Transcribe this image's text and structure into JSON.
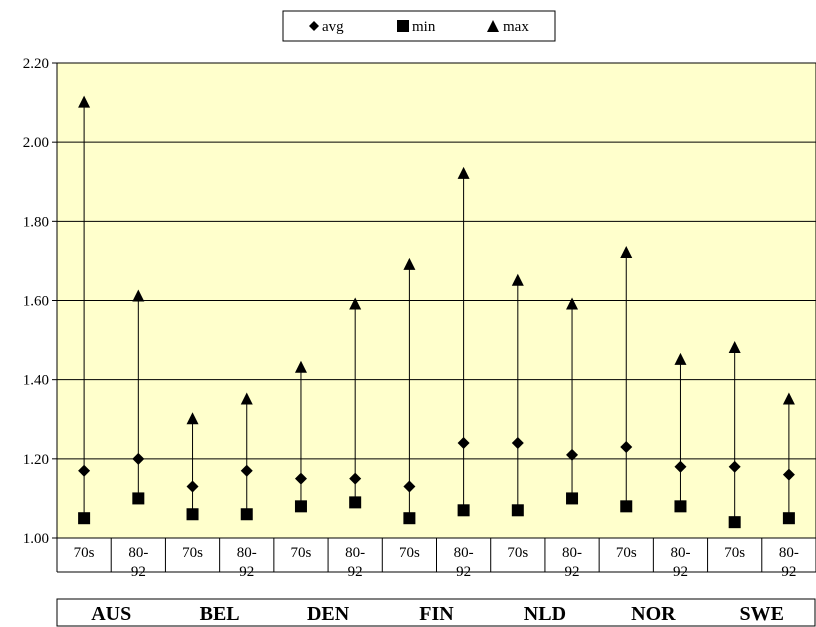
{
  "chart_data": {
    "type": "scatter",
    "title": "",
    "xlabel": "",
    "ylabel": "",
    "ylim": [
      1.0,
      2.2
    ],
    "yticks": [
      "1.00",
      "1.20",
      "1.40",
      "1.60",
      "1.80",
      "2.00",
      "2.20"
    ],
    "grid": true,
    "legend_position": "top-center",
    "plot_background": "#ffffcc",
    "groups": [
      "AUS",
      "BEL",
      "DEN",
      "FIN",
      "NLD",
      "NOR",
      "SWE"
    ],
    "categories": [
      {
        "group": "AUS",
        "period": [
          "70s"
        ]
      },
      {
        "group": "AUS",
        "period": [
          "80-",
          "92"
        ]
      },
      {
        "group": "BEL",
        "period": [
          "70s"
        ]
      },
      {
        "group": "BEL",
        "period": [
          "80-",
          "92"
        ]
      },
      {
        "group": "DEN",
        "period": [
          "70s"
        ]
      },
      {
        "group": "DEN",
        "period": [
          "80-",
          "92"
        ]
      },
      {
        "group": "FIN",
        "period": [
          "70s"
        ]
      },
      {
        "group": "FIN",
        "period": [
          "80-",
          "92"
        ]
      },
      {
        "group": "NLD",
        "period": [
          "70s"
        ]
      },
      {
        "group": "NLD",
        "period": [
          "80-",
          "92"
        ]
      },
      {
        "group": "NOR",
        "period": [
          "70s"
        ]
      },
      {
        "group": "NOR",
        "period": [
          "80-",
          "92"
        ]
      },
      {
        "group": "SWE",
        "period": [
          "70s"
        ]
      },
      {
        "group": "SWE",
        "period": [
          "80-",
          "92"
        ]
      }
    ],
    "series": [
      {
        "name": "avg",
        "marker": "diamond",
        "values": [
          1.17,
          1.2,
          1.13,
          1.17,
          1.15,
          1.15,
          1.13,
          1.24,
          1.24,
          1.21,
          1.23,
          1.18,
          1.18,
          1.16
        ]
      },
      {
        "name": "min",
        "marker": "square",
        "values": [
          1.05,
          1.1,
          1.06,
          1.06,
          1.08,
          1.09,
          1.05,
          1.07,
          1.07,
          1.1,
          1.08,
          1.08,
          1.04,
          1.05
        ]
      },
      {
        "name": "max",
        "marker": "triangle",
        "values": [
          2.1,
          1.61,
          1.3,
          1.35,
          1.43,
          1.59,
          1.69,
          1.92,
          1.65,
          1.59,
          1.72,
          1.45,
          1.48,
          1.35
        ]
      }
    ]
  }
}
